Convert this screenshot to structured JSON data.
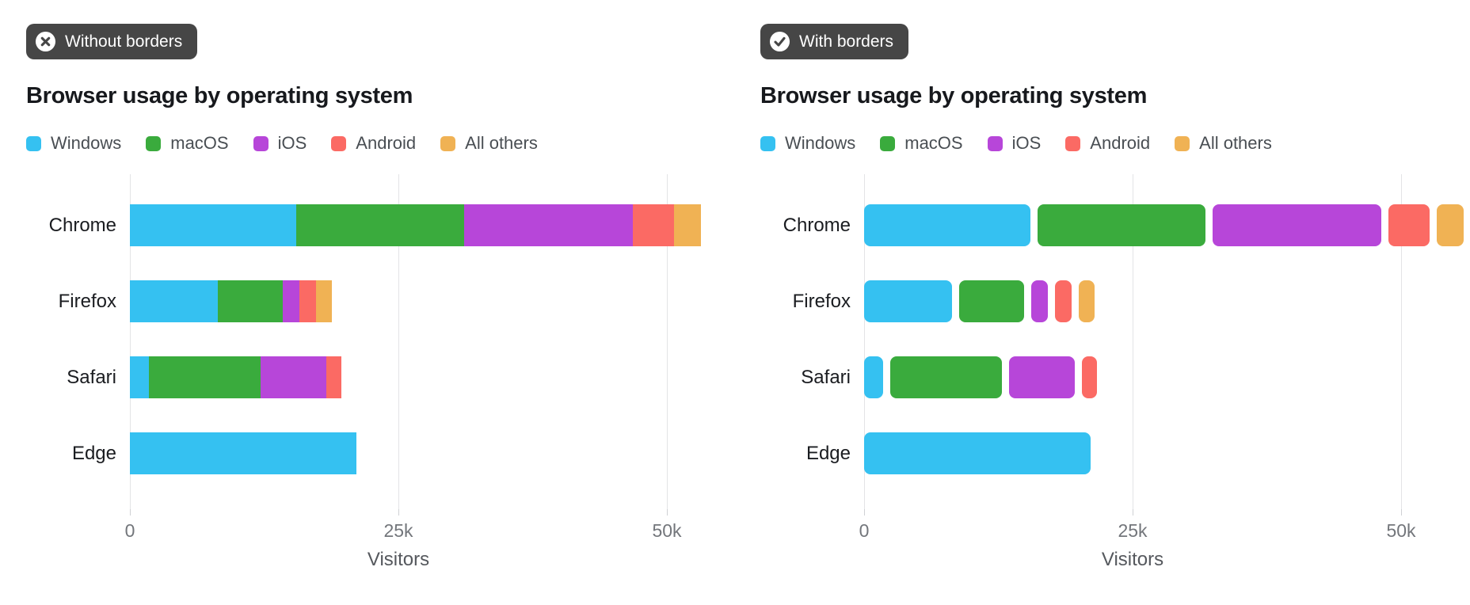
{
  "styles": {
    "background": "#ffffff",
    "badge_bg": "#464646",
    "badge_fg": "#ffffff",
    "grid_color": "#e3e4e6",
    "tick_color": "#cfd1d4",
    "title_color": "#17191d",
    "category_label_color": "#1a1c20",
    "legend_text_color": "#494e53",
    "axis_text_color": "#73767b",
    "axis_title_color": "#55585d"
  },
  "chart_data": [
    {
      "type": "bar",
      "orientation": "horizontal",
      "stacked": true,
      "segment_borders": false,
      "variant_badge": "Without borders",
      "badge_icon": "x-circle-icon",
      "title": "Browser usage by operating system",
      "legend_position": "top",
      "grid": "vertical-gridlines",
      "xlabel": "Visitors",
      "xlim": [
        0,
        50000
      ],
      "xticks": [
        {
          "value": 0,
          "label": "0"
        },
        {
          "value": 25000,
          "label": "25k"
        },
        {
          "value": 50000,
          "label": "50k"
        }
      ],
      "categories": [
        "Chrome",
        "Firefox",
        "Safari",
        "Edge"
      ],
      "series": [
        {
          "name": "Windows",
          "color": "#35c1f1",
          "values": [
            15500,
            8200,
            1800,
            21100
          ]
        },
        {
          "name": "macOS",
          "color": "#3aab3d",
          "values": [
            15600,
            6000,
            10400,
            0
          ]
        },
        {
          "name": "iOS",
          "color": "#b746d9",
          "values": [
            15700,
            1600,
            6100,
            0
          ]
        },
        {
          "name": "Android",
          "color": "#fb6a64",
          "values": [
            3900,
            1500,
            1400,
            0
          ]
        },
        {
          "name": "All others",
          "color": "#f0b254",
          "values": [
            2500,
            1500,
            0,
            0
          ]
        }
      ]
    },
    {
      "type": "bar",
      "orientation": "horizontal",
      "stacked": true,
      "segment_borders": true,
      "variant_badge": "With borders",
      "badge_icon": "check-circle-icon",
      "title": "Browser usage by operating system",
      "legend_position": "top",
      "grid": "vertical-gridlines",
      "xlabel": "Visitors",
      "xlim": [
        0,
        50000
      ],
      "xticks": [
        {
          "value": 0,
          "label": "0"
        },
        {
          "value": 25000,
          "label": "25k"
        },
        {
          "value": 50000,
          "label": "50k"
        }
      ],
      "categories": [
        "Chrome",
        "Firefox",
        "Safari",
        "Edge"
      ],
      "series": [
        {
          "name": "Windows",
          "color": "#35c1f1",
          "values": [
            15500,
            8200,
            1800,
            21100
          ]
        },
        {
          "name": "macOS",
          "color": "#3aab3d",
          "values": [
            15600,
            6000,
            10400,
            0
          ]
        },
        {
          "name": "iOS",
          "color": "#b746d9",
          "values": [
            15700,
            1600,
            6100,
            0
          ]
        },
        {
          "name": "Android",
          "color": "#fb6a64",
          "values": [
            3900,
            1500,
            1400,
            0
          ]
        },
        {
          "name": "All others",
          "color": "#f0b254",
          "values": [
            2500,
            1500,
            0,
            0
          ]
        }
      ]
    }
  ]
}
